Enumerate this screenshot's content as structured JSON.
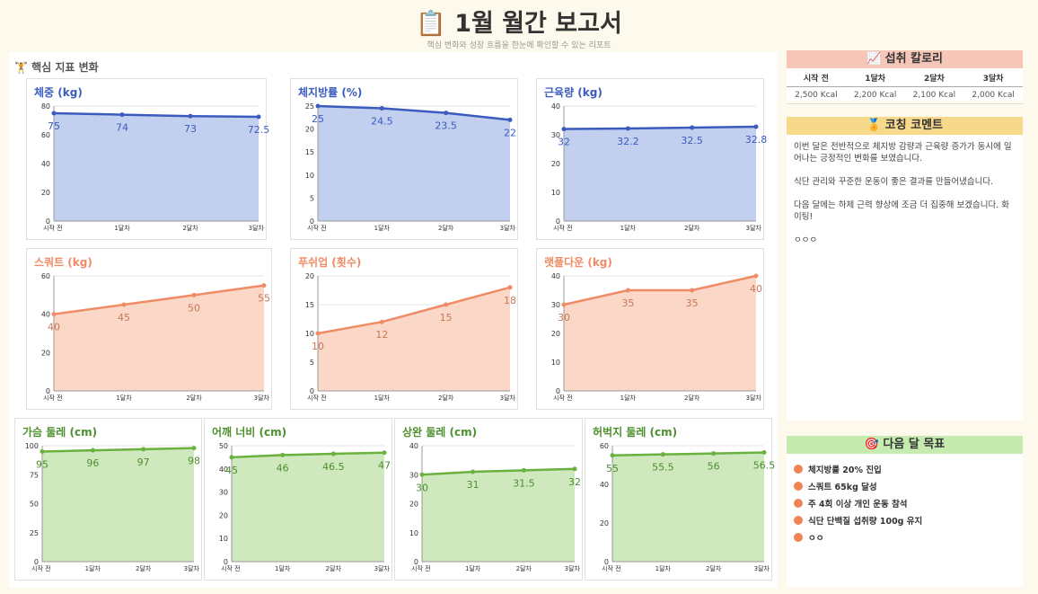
{
  "header": {
    "title": "📋 1월 월간 보고서",
    "subtitle": "핵심 변화와 성장 흐름을 한눈에 확인할 수 있는 리포트"
  },
  "section": {
    "title": "🏋 핵심 지표 변화"
  },
  "colors": {
    "blue_line": "#3b5bbf",
    "blue_fill": "#c3cfef",
    "blue_title": "#3b5bbf",
    "orange_line": "#ef8c66",
    "orange_fill": "#fbd7c8",
    "orange_title": "#ef8c66",
    "orange_label": "#c57a58",
    "green_line": "#6ab140",
    "green_fill": "#cfe8be",
    "green_title": "#4d8f2d",
    "green_label": "#4d8f2d",
    "calorie_header": "#f6c6b8",
    "coaching_header": "#f7d98c",
    "goal_header": "#c6ebb0"
  },
  "chart_data": [
    {
      "type": "area",
      "title": "체중 (kg)",
      "categories": [
        "시작 전",
        "1달차",
        "2달차",
        "3달차"
      ],
      "values": [
        75,
        74,
        73,
        72.5
      ],
      "ylim": [
        0,
        80
      ],
      "yticks": [
        0,
        20,
        40,
        60,
        80
      ],
      "theme": "blue"
    },
    {
      "type": "area",
      "title": "체지방률 (%)",
      "categories": [
        "시작 전",
        "1달차",
        "2달차",
        "3달차"
      ],
      "values": [
        25,
        24.5,
        23.5,
        22
      ],
      "ylim": [
        0,
        25
      ],
      "yticks": [
        0,
        5,
        10,
        15,
        20,
        25
      ],
      "theme": "blue"
    },
    {
      "type": "area",
      "title": "근육량 (kg)",
      "categories": [
        "시작 전",
        "1달차",
        "2달차",
        "3달차"
      ],
      "values": [
        32,
        32.2,
        32.5,
        32.8
      ],
      "ylim": [
        0,
        40
      ],
      "yticks": [
        0,
        10,
        20,
        30,
        40
      ],
      "theme": "blue"
    },
    {
      "type": "area",
      "title": "스쿼트 (kg)",
      "categories": [
        "시작 전",
        "1달차",
        "2달차",
        "3달차"
      ],
      "values": [
        40,
        45,
        50,
        55
      ],
      "ylim": [
        0,
        60
      ],
      "yticks": [
        0,
        20,
        40,
        60
      ],
      "theme": "orange"
    },
    {
      "type": "area",
      "title": "푸쉬업 (횟수)",
      "categories": [
        "시작 전",
        "1달차",
        "2달차",
        "3달차"
      ],
      "values": [
        10,
        12,
        15,
        18
      ],
      "ylim": [
        0,
        20
      ],
      "yticks": [
        0,
        5,
        10,
        15,
        20
      ],
      "theme": "orange"
    },
    {
      "type": "area",
      "title": "랫풀다운 (kg)",
      "categories": [
        "시작 전",
        "1달차",
        "2달차",
        "3달차"
      ],
      "values": [
        30,
        35,
        35,
        40
      ],
      "ylim": [
        0,
        40
      ],
      "yticks": [
        0,
        10,
        20,
        30,
        40
      ],
      "theme": "orange"
    },
    {
      "type": "area",
      "title": "가슴 둘레 (cm)",
      "categories": [
        "시작 전",
        "1달차",
        "2달차",
        "3달차"
      ],
      "values": [
        95,
        96,
        97,
        98
      ],
      "ylim": [
        0,
        100
      ],
      "yticks": [
        0,
        25,
        50,
        75,
        100
      ],
      "theme": "green"
    },
    {
      "type": "area",
      "title": "어깨 너비 (cm)",
      "categories": [
        "시작 전",
        "1달차",
        "2달차",
        "3달차"
      ],
      "values": [
        45,
        46,
        46.5,
        47
      ],
      "ylim": [
        0,
        50
      ],
      "yticks": [
        0,
        10,
        20,
        30,
        40,
        50
      ],
      "theme": "green"
    },
    {
      "type": "area",
      "title": "상완 둘레 (cm)",
      "categories": [
        "시작 전",
        "1달차",
        "2달차",
        "3달차"
      ],
      "values": [
        30,
        31,
        31.5,
        32
      ],
      "ylim": [
        0,
        40
      ],
      "yticks": [
        0,
        10,
        20,
        30,
        40
      ],
      "theme": "green"
    },
    {
      "type": "area",
      "title": "허벅지 둘레 (cm)",
      "categories": [
        "시작 전",
        "1달차",
        "2달차",
        "3달차"
      ],
      "values": [
        55,
        55.5,
        56,
        56.5
      ],
      "ylim": [
        0,
        60
      ],
      "yticks": [
        0,
        20,
        40,
        60
      ],
      "theme": "green"
    }
  ],
  "calories": {
    "title": "📈 섭취 칼로리",
    "headers": [
      "시작 전",
      "1달차",
      "2달차",
      "3달차"
    ],
    "values": [
      "2,500 Kcal",
      "2,200 Kcal",
      "2,100 Kcal",
      "2,000 Kcal"
    ]
  },
  "coaching": {
    "title": "🏅 코칭 코멘트",
    "paragraphs": [
      "이번 달은 전반적으로 체지방 감량과 근육량 증가가 동시에 일어나는 긍정적인 변화를 보였습니다.",
      "식단 관리와 꾸준한 운동이 좋은 결과를 만들어냈습니다.",
      "다음 달에는 하체 근력 향상에 조금 더 집중해 보겠습니다. 화이팅!",
      "ㅇㅇㅇ"
    ]
  },
  "goals": {
    "title": "🎯 다음 달 목표",
    "items": [
      "체지방률 20% 진입",
      "스쿼트 65kg 달성",
      "주 4회 이상 개인 운동 참석",
      "식단 단백질 섭취량 100g 유지",
      "ㅇㅇ"
    ]
  }
}
